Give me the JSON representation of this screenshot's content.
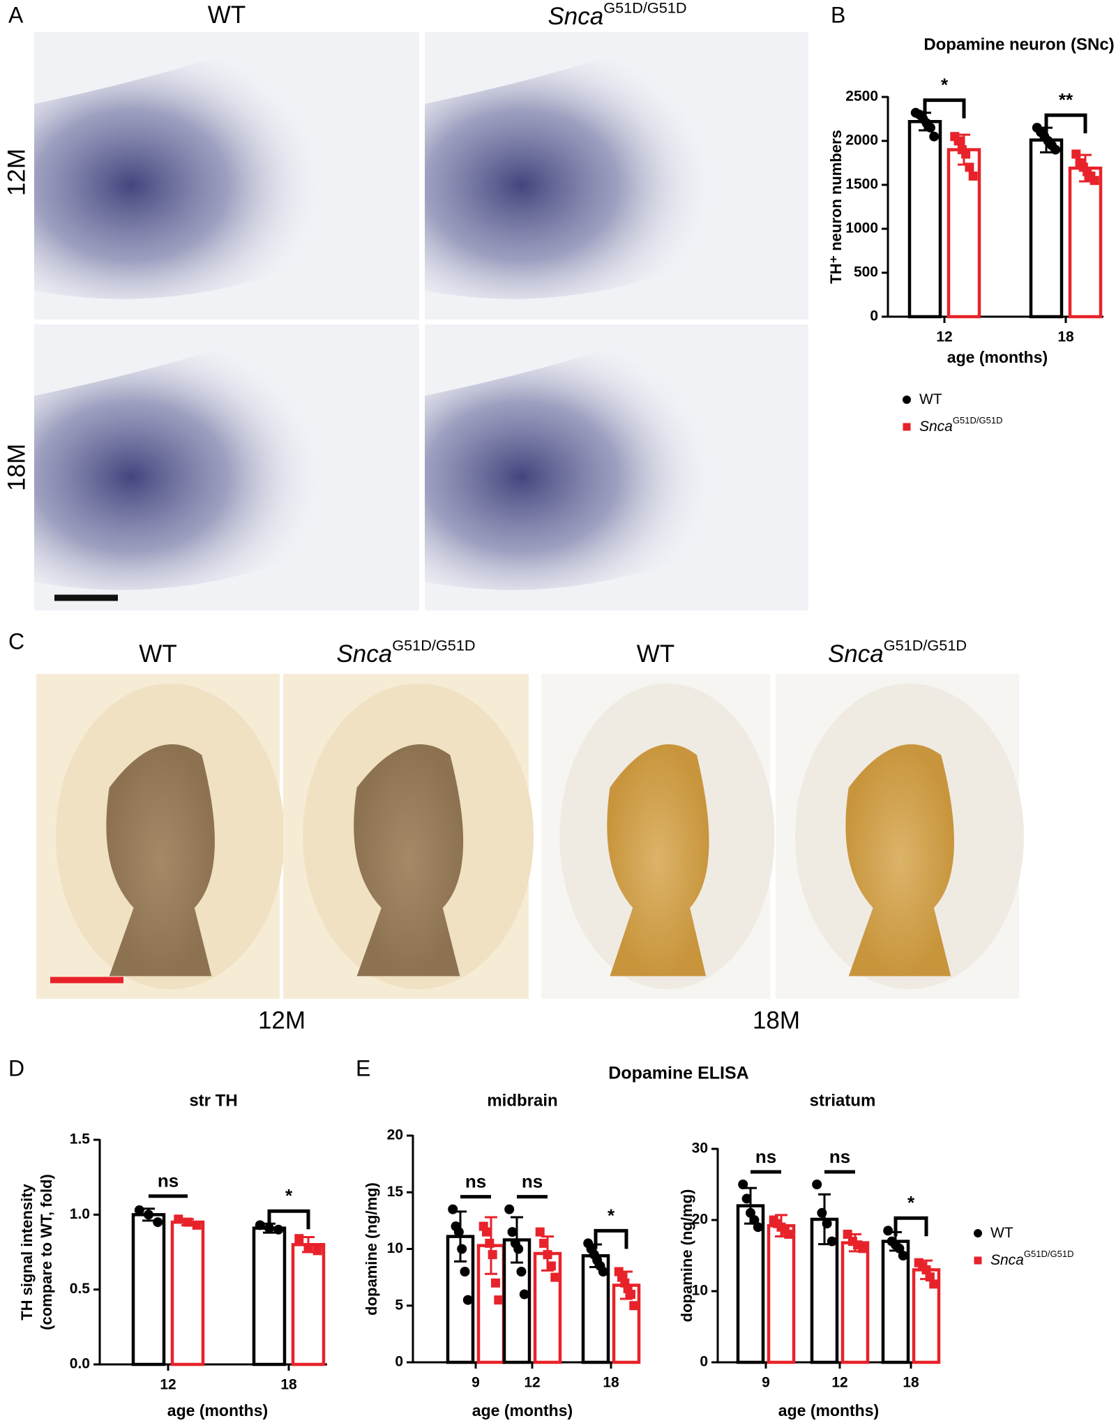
{
  "panels": {
    "A": {
      "label": "A",
      "columns": [
        {
          "name": "WT"
        },
        {
          "name": "Snca",
          "sup": "G51D/G51D"
        }
      ],
      "rows": [
        "12M",
        "18M"
      ]
    },
    "B": {
      "label": "B"
    },
    "C": {
      "label": "C",
      "columns": [
        {
          "name": "WT"
        },
        {
          "name": "Snca",
          "sup": "G51D/G51D"
        },
        {
          "name": "WT"
        },
        {
          "name": "Snca",
          "sup": "G51D/G51D"
        }
      ],
      "groups": [
        "12M",
        "18M"
      ]
    },
    "D": {
      "label": "D"
    },
    "E": {
      "label": "E",
      "title": "Dopamine ELISA"
    }
  },
  "chart_data": [
    {
      "type": "bar",
      "title": "Dopamine neuron (SNc)",
      "x_label": "age (months)",
      "y_label": [
        "TH⁺ neuron numbers"
      ],
      "categories": [
        "12",
        "18"
      ],
      "ylim": [
        0,
        2500
      ],
      "yticks": [
        0,
        500,
        1000,
        1500,
        2000,
        2500
      ],
      "legend": true,
      "series": [
        {
          "name": "WT",
          "color": "#000000",
          "marker": "circle",
          "values": [
            2220,
            2010
          ],
          "errors": [
            100,
            140
          ],
          "points": [
            [
              2320,
              2300,
              2250,
              2200,
              2150,
              2050
            ],
            [
              2150,
              2100,
              2050,
              2000,
              1950,
              1900
            ]
          ]
        },
        {
          "name": "Snca",
          "name_sup": "G51D/G51D",
          "color": "#e8222a",
          "marker": "square",
          "values": [
            1900,
            1690
          ],
          "errors": [
            170,
            150
          ],
          "points": [
            [
              2050,
              2000,
              1900,
              1850,
              1700,
              1600
            ],
            [
              1850,
              1750,
              1700,
              1650,
              1600,
              1550
            ]
          ]
        }
      ],
      "significance": [
        {
          "label": "*",
          "style": "bracket"
        },
        {
          "label": "**",
          "style": "bracket"
        }
      ]
    },
    {
      "type": "bar",
      "title": "str TH",
      "x_label": "age (months)",
      "y_label": [
        "TH signal intensity",
        "(compare to WT, fold)"
      ],
      "categories": [
        "12",
        "18"
      ],
      "ylim": [
        0,
        1.5
      ],
      "yticks": [
        {
          "value": 0,
          "label": "0.0"
        },
        {
          "value": 0.5,
          "label": "0.5"
        },
        {
          "value": 1,
          "label": "1.0"
        },
        {
          "value": 1.5,
          "label": "1.5"
        }
      ],
      "legend": false,
      "series": [
        {
          "name": "WT",
          "color": "#000000",
          "marker": "circle",
          "values": [
            1.0,
            0.91
          ],
          "errors": [
            0.04,
            0.03
          ],
          "points": [
            [
              1.03,
              1.0,
              0.95
            ],
            [
              0.93,
              0.91,
              0.9
            ]
          ]
        },
        {
          "name": "Snca",
          "name_sup": "G51D/G51D",
          "color": "#e8222a",
          "marker": "square",
          "values": [
            0.95,
            0.8
          ],
          "errors": [
            0.02,
            0.05
          ],
          "points": [
            [
              0.97,
              0.95,
              0.93
            ],
            [
              0.84,
              0.78,
              0.76
            ]
          ]
        }
      ],
      "significance": [
        {
          "label": "ns",
          "style": "line"
        },
        {
          "label": "*",
          "style": "bracket"
        }
      ]
    },
    {
      "type": "bar",
      "title": "midbrain",
      "x_label": "age (months)",
      "y_label": [
        "dopamine (ng/mg)"
      ],
      "categories": [
        "9",
        "12",
        "18"
      ],
      "ylim": [
        0,
        20
      ],
      "yticks": [
        0,
        5,
        10,
        15,
        20
      ],
      "legend": false,
      "series": [
        {
          "name": "WT",
          "color": "#000000",
          "marker": "circle",
          "values": [
            11.1,
            10.8,
            9.4
          ],
          "errors": [
            2.2,
            2.0,
            1.0
          ],
          "points": [
            [
              13.5,
              12,
              11.5,
              10,
              8,
              5.5
            ],
            [
              13.5,
              11.5,
              10.5,
              10,
              8,
              6
            ],
            [
              10.5,
              10,
              9.5,
              9,
              8.5,
              8
            ]
          ]
        },
        {
          "name": "Snca",
          "name_sup": "G51D/G51D",
          "color": "#e8222a",
          "marker": "square",
          "values": [
            10.3,
            9.6,
            6.8
          ],
          "errors": [
            2.5,
            1.5,
            1.2
          ],
          "points": [
            [
              12,
              11.5,
              10.5,
              9.5,
              7,
              5.5
            ],
            [
              11.5,
              10.5,
              9.5,
              8.5,
              7.5
            ],
            [
              8,
              7.5,
              7,
              6.5,
              6,
              5
            ]
          ]
        }
      ],
      "significance": [
        {
          "label": "ns",
          "style": "line"
        },
        {
          "label": "ns",
          "style": "line"
        },
        {
          "label": "*",
          "style": "bracket"
        }
      ]
    },
    {
      "type": "bar",
      "title": "striatum",
      "x_label": "age (months)",
      "y_label": [
        "dopamine (ng/mg)"
      ],
      "categories": [
        "9",
        "12",
        "18"
      ],
      "ylim": [
        0,
        30
      ],
      "yticks": [
        0,
        10,
        20,
        30
      ],
      "legend": true,
      "series": [
        {
          "name": "WT",
          "color": "#000000",
          "marker": "circle",
          "values": [
            22,
            20.1,
            17
          ],
          "errors": [
            2.5,
            3.5,
            1.3
          ],
          "points": [
            [
              25,
              23,
              21,
              20,
              19
            ],
            [
              25,
              21,
              19.5,
              17
            ],
            [
              18.5,
              17,
              16.5,
              16,
              15
            ]
          ]
        },
        {
          "name": "Snca",
          "name_sup": "G51D/G51D",
          "color": "#e8222a",
          "marker": "square",
          "values": [
            19.2,
            16.8,
            13
          ],
          "errors": [
            1.5,
            1.2,
            1.3
          ],
          "points": [
            [
              20,
              19.5,
              19,
              18.5,
              18
            ],
            [
              18,
              17,
              16.5,
              16
            ],
            [
              14,
              13.5,
              13,
              12,
              11
            ]
          ]
        }
      ],
      "significance": [
        {
          "label": "ns",
          "style": "line"
        },
        {
          "label": "ns",
          "style": "line"
        },
        {
          "label": "*",
          "style": "bracket"
        }
      ]
    }
  ]
}
